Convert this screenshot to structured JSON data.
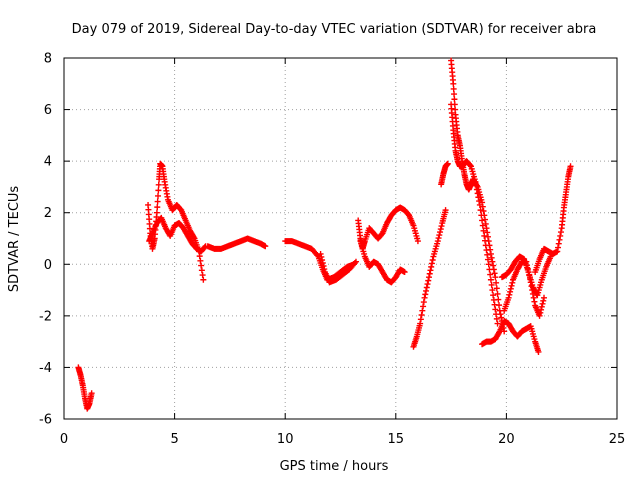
{
  "chart_data": {
    "type": "scatter",
    "title": "Day 079 of 2019, Sidereal Day-to-day VTEC variation (SDTVAR) for receiver abra",
    "xlabel": "GPS time / hours",
    "ylabel": "SDTVAR / TECUs",
    "xlim": [
      0,
      25
    ],
    "ylim": [
      -6,
      8
    ],
    "xticks": [
      "0",
      "5",
      "10",
      "15",
      "20",
      "25"
    ],
    "xtick_values": [
      0,
      5,
      10,
      15,
      20,
      25
    ],
    "yticks": [
      "-6",
      "-4",
      "-2",
      "0",
      "2",
      "4",
      "6",
      "8"
    ],
    "ytick_values": [
      -6,
      -4,
      -2,
      0,
      2,
      4,
      6,
      8
    ],
    "grid": true,
    "marker": "+",
    "marker_color": "#ff0000",
    "series": [
      {
        "name": "SDTVAR",
        "x": [
          0.65,
          0.75,
          0.85,
          0.95,
          1.05,
          1.15,
          1.25
        ],
        "y": [
          -4.0,
          -4.3,
          -4.7,
          -5.2,
          -5.6,
          -5.4,
          -5.0
        ]
      },
      {
        "name": "SDTVAR",
        "x": [
          3.8,
          3.9,
          4.0,
          4.1,
          4.2,
          4.3,
          4.35,
          4.45,
          4.55,
          4.7,
          4.9,
          5.1,
          5.3,
          5.5,
          5.7,
          5.9,
          6.1,
          6.3
        ],
        "y": [
          2.3,
          1.2,
          0.6,
          1.0,
          2.0,
          3.3,
          3.9,
          3.8,
          3.2,
          2.5,
          2.1,
          2.3,
          2.1,
          1.7,
          1.3,
          1.0,
          0.5,
          -0.6
        ]
      },
      {
        "name": "SDTVAR",
        "x": [
          3.85,
          4.0,
          4.2,
          4.4,
          4.6,
          4.8,
          5.0,
          5.2,
          5.4,
          5.6,
          5.8,
          6.0,
          6.2,
          6.4
        ],
        "y": [
          0.9,
          1.2,
          1.6,
          1.8,
          1.4,
          1.1,
          1.5,
          1.6,
          1.4,
          1.1,
          0.8,
          0.6,
          0.5,
          0.7
        ]
      },
      {
        "name": "SDTVAR",
        "x": [
          6.5,
          6.8,
          7.1,
          7.4,
          7.7,
          8.0,
          8.3,
          8.6,
          8.9,
          9.1
        ],
        "y": [
          0.7,
          0.6,
          0.6,
          0.7,
          0.8,
          0.9,
          1.0,
          0.9,
          0.8,
          0.7
        ]
      },
      {
        "name": "SDTVAR",
        "x": [
          10.0,
          10.3,
          10.6,
          10.9,
          11.2,
          11.5,
          11.7,
          11.9,
          12.2,
          12.5,
          12.8,
          13.1
        ],
        "y": [
          0.9,
          0.9,
          0.8,
          0.7,
          0.6,
          0.3,
          -0.2,
          -0.6,
          -0.5,
          -0.3,
          -0.1,
          0.0
        ]
      },
      {
        "name": "SDTVAR",
        "x": [
          11.6,
          11.8,
          12.0,
          12.3,
          12.6,
          12.9,
          13.2
        ],
        "y": [
          0.4,
          -0.3,
          -0.7,
          -0.6,
          -0.4,
          -0.2,
          0.1
        ]
      },
      {
        "name": "SDTVAR",
        "x": [
          13.3,
          13.4,
          13.5,
          13.6,
          13.8,
          14.0,
          14.2,
          14.4,
          14.6,
          14.8,
          15.0,
          15.2,
          15.4,
          15.6,
          15.8,
          16.0
        ],
        "y": [
          1.7,
          1.0,
          0.6,
          0.9,
          1.4,
          1.2,
          1.0,
          1.2,
          1.6,
          1.9,
          2.1,
          2.2,
          2.1,
          1.9,
          1.5,
          0.9
        ]
      },
      {
        "name": "SDTVAR",
        "x": [
          13.4,
          13.6,
          13.8,
          14.0,
          14.2,
          14.4,
          14.6,
          14.8,
          15.0,
          15.2,
          15.4
        ],
        "y": [
          0.9,
          0.3,
          -0.1,
          0.1,
          0.0,
          -0.3,
          -0.6,
          -0.7,
          -0.5,
          -0.2,
          -0.3
        ]
      },
      {
        "name": "SDTVAR",
        "x": [
          15.8,
          15.95,
          16.1,
          16.3,
          16.5,
          16.7,
          16.9,
          17.1,
          17.25
        ],
        "y": [
          -3.2,
          -2.8,
          -2.3,
          -1.3,
          -0.5,
          0.3,
          0.9,
          1.6,
          2.1
        ]
      },
      {
        "name": "SDTVAR",
        "x": [
          17.05,
          17.15,
          17.25,
          17.35
        ],
        "y": [
          3.1,
          3.5,
          3.8,
          3.9
        ]
      },
      {
        "name": "SDTVAR",
        "x": [
          17.5,
          17.6,
          17.7,
          17.8,
          17.9,
          18.0,
          18.1,
          18.2,
          18.3,
          18.4,
          18.5,
          18.7,
          18.9,
          19.1,
          19.3,
          19.5,
          19.7,
          19.9
        ],
        "y": [
          7.9,
          7.0,
          5.8,
          5.0,
          4.6,
          4.0,
          3.5,
          3.1,
          2.9,
          3.1,
          3.3,
          3.0,
          2.4,
          1.4,
          0.4,
          -0.5,
          -1.8,
          -2.6
        ]
      },
      {
        "name": "SDTVAR",
        "x": [
          17.5,
          17.6,
          17.7,
          17.8,
          17.9,
          18.0,
          18.1,
          18.2,
          18.4,
          18.6,
          18.8,
          19.0,
          19.2,
          19.4,
          19.6
        ],
        "y": [
          6.2,
          5.2,
          4.4,
          4.0,
          3.8,
          3.8,
          3.9,
          4.0,
          3.8,
          3.2,
          2.3,
          1.1,
          0.0,
          -1.2,
          -2.3
        ]
      },
      {
        "name": "SDTVAR",
        "x": [
          18.9,
          19.1,
          19.3,
          19.5,
          19.7,
          19.9,
          20.1,
          20.3,
          20.5,
          20.7,
          20.9,
          21.1,
          21.3,
          21.45
        ],
        "y": [
          -3.1,
          -3.0,
          -3.0,
          -2.9,
          -2.6,
          -2.2,
          -2.3,
          -2.6,
          -2.8,
          -2.6,
          -2.5,
          -2.4,
          -3.0,
          -3.4
        ]
      },
      {
        "name": "SDTVAR",
        "x": [
          19.8,
          20.0,
          20.2,
          20.4,
          20.6,
          20.8,
          21.0,
          21.2,
          21.4,
          21.6,
          21.8,
          22.0
        ],
        "y": [
          -0.5,
          -0.4,
          -0.2,
          0.1,
          0.3,
          0.2,
          -0.3,
          -0.9,
          -1.2,
          -0.6,
          -0.1,
          0.3
        ]
      },
      {
        "name": "SDTVAR",
        "x": [
          19.9,
          20.1,
          20.3,
          20.5,
          20.7,
          20.9,
          21.1,
          21.3,
          21.5,
          21.7
        ],
        "y": [
          -1.8,
          -1.3,
          -0.6,
          -0.2,
          0.1,
          0.1,
          -0.7,
          -1.6,
          -2.0,
          -1.3
        ]
      },
      {
        "name": "SDTVAR",
        "x": [
          21.3,
          21.5,
          21.7,
          21.9,
          22.1,
          22.3,
          22.5,
          22.6,
          22.7,
          22.8,
          22.9
        ],
        "y": [
          -0.3,
          0.2,
          0.6,
          0.5,
          0.4,
          0.5,
          1.4,
          2.2,
          2.8,
          3.4,
          3.8
        ]
      }
    ]
  }
}
